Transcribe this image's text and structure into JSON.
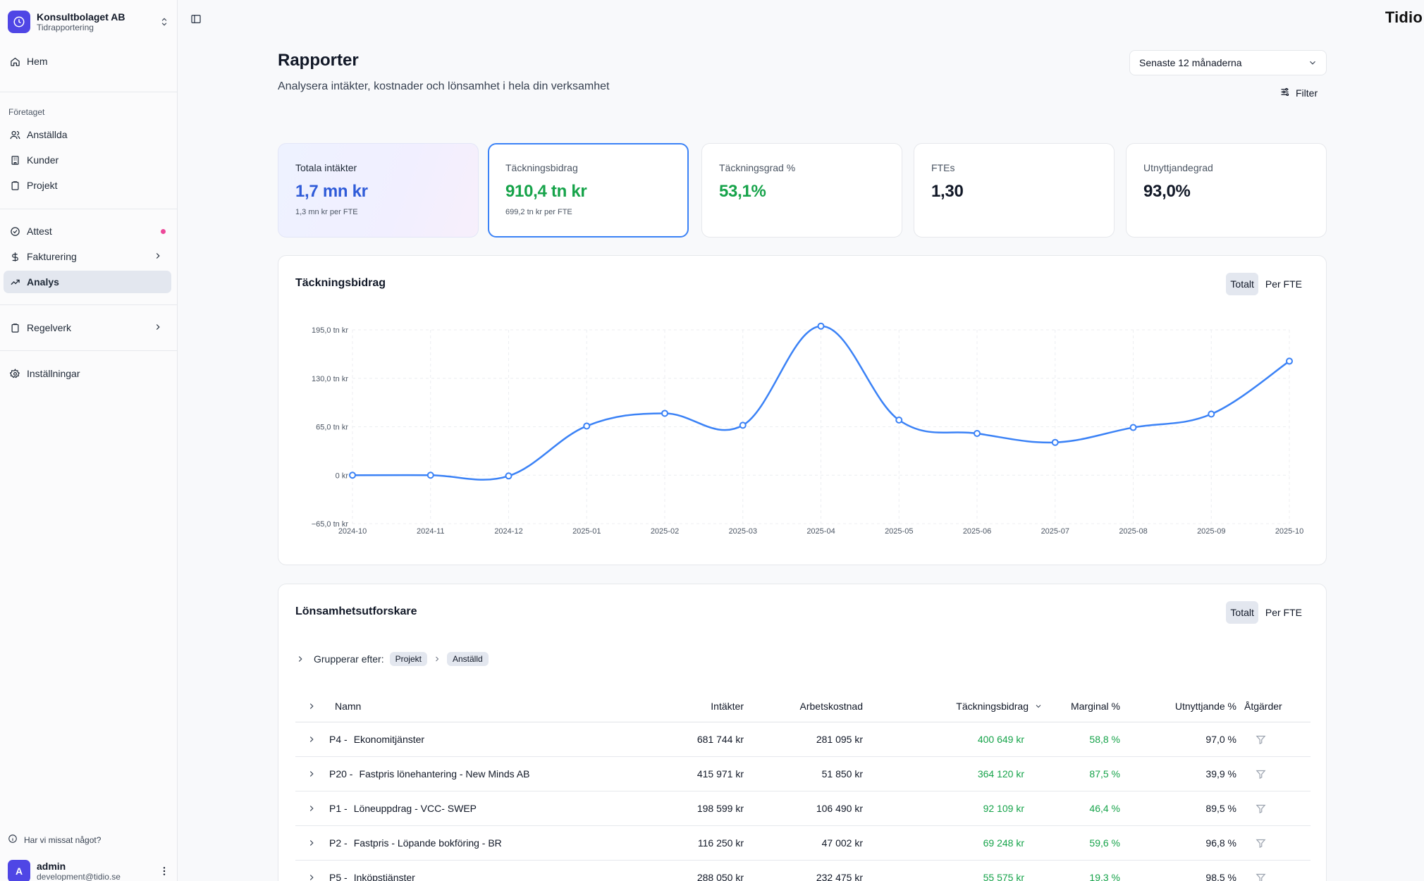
{
  "org": {
    "name": "Konsultbolaget AB",
    "subtitle": "Tidrapportering"
  },
  "brand": "Tidio",
  "nav": {
    "home": "Hem",
    "section_company": "Företaget",
    "employees": "Anställda",
    "customers": "Kunder",
    "projects": "Projekt",
    "attest": "Attest",
    "billing": "Fakturering",
    "analysis": "Analys",
    "rules": "Regelverk",
    "settings": "Inställningar"
  },
  "footer": {
    "help": "Har vi missat något?",
    "user_initial": "A",
    "user_name": "admin",
    "user_email": "development@tidio.se"
  },
  "header": {
    "title": "Rapporter",
    "subtitle": "Analysera intäkter, kostnader och lönsamhet i hela din verksamhet",
    "period": "Senaste 12 månaderna",
    "filter": "Filter"
  },
  "kpis": [
    {
      "label": "Totala intäkter",
      "value": "1,7 mn kr",
      "sub": "1,3 mn kr per FTE",
      "color": "#2f5bd8"
    },
    {
      "label": "Täckningsbidrag",
      "value": "910,4 tn kr",
      "sub": "699,2 tn kr per FTE",
      "color": "#16a34a"
    },
    {
      "label": "Täckningsgrad %",
      "value": "53,1%",
      "sub": "",
      "color": "#16a34a"
    },
    {
      "label": "FTEs",
      "value": "1,30",
      "sub": "",
      "color": "#111827"
    },
    {
      "label": "Utnyttjandegrad",
      "value": "93,0%",
      "sub": "",
      "color": "#111827"
    }
  ],
  "chart_panel": {
    "title": "Täckningsbidrag",
    "toggle_total": "Totalt",
    "toggle_fte": "Per FTE"
  },
  "chart_data": {
    "type": "line",
    "title": "Täckningsbidrag",
    "x": [
      "2024-10",
      "2024-11",
      "2024-12",
      "2025-01",
      "2025-02",
      "2025-03",
      "2025-04",
      "2025-05",
      "2025-06",
      "2025-07",
      "2025-08",
      "2025-09",
      "2025-10"
    ],
    "values": [
      0,
      0,
      -1,
      66,
      83,
      67,
      200,
      74,
      56,
      44,
      64,
      82,
      153
    ],
    "y_ticks": [
      -65,
      0,
      65,
      130,
      195
    ],
    "y_tick_labels": [
      "−65,0 tn kr",
      "0 kr",
      "65,0 tn kr",
      "130,0 tn kr",
      "195,0 tn kr"
    ],
    "ylim": [
      -65,
      200
    ],
    "unit": "tn kr",
    "grid": true,
    "color": "#3b82f6"
  },
  "explorer": {
    "title": "Lönsamhetsutforskare",
    "toggle_total": "Totalt",
    "toggle_fte": "Per FTE",
    "group_label": "Grupperar efter:",
    "groups": [
      "Projekt",
      "Anställd"
    ],
    "columns": [
      "Namn",
      "Intäkter",
      "Arbetskostnad",
      "Täckningsbidrag",
      "Marginal %",
      "Utnyttjande %",
      "Åtgärder"
    ],
    "rows": [
      {
        "code": "P4 -",
        "name": "Ekonomitjänster",
        "intakter": "681 744 kr",
        "arbetskostnad": "281 095 kr",
        "tb": "400 649 kr",
        "marginal": "58,8 %",
        "utnyttjande": "97,0 %"
      },
      {
        "code": "P20 -",
        "name": "Fastpris lönehantering - New Minds AB",
        "intakter": "415 971 kr",
        "arbetskostnad": "51 850 kr",
        "tb": "364 120 kr",
        "marginal": "87,5 %",
        "utnyttjande": "39,9 %"
      },
      {
        "code": "P1 -",
        "name": "Löneuppdrag - VCC- SWEP",
        "intakter": "198 599 kr",
        "arbetskostnad": "106 490 kr",
        "tb": "92 109 kr",
        "marginal": "46,4 %",
        "utnyttjande": "89,5 %"
      },
      {
        "code": "P2 -",
        "name": "Fastpris - Löpande bokföring - BR",
        "intakter": "116 250 kr",
        "arbetskostnad": "47 002 kr",
        "tb": "69 248 kr",
        "marginal": "59,6 %",
        "utnyttjande": "96,8 %"
      },
      {
        "code": "P5 -",
        "name": "Inköpstjänster",
        "intakter": "288 050 kr",
        "arbetskostnad": "232 475 kr",
        "tb": "55 575 kr",
        "marginal": "19,3 %",
        "utnyttjande": "98,5 %"
      }
    ]
  }
}
